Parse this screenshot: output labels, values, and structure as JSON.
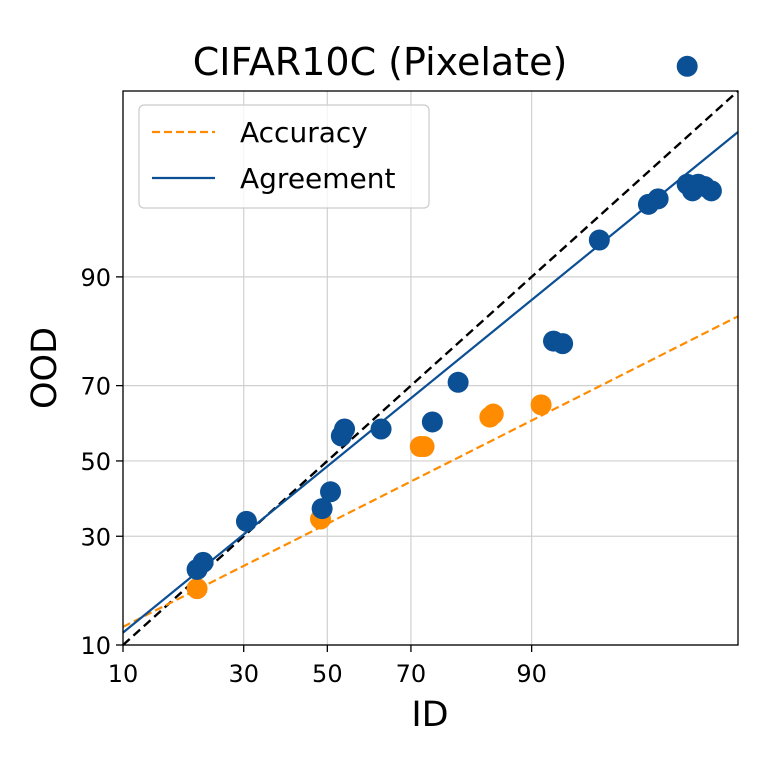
{
  "chart_data": {
    "type": "scatter",
    "title": "CIFAR10C (Pixelate)",
    "xlabel": "ID",
    "ylabel": "OOD",
    "x_ticks": [
      10,
      30,
      50,
      70,
      90
    ],
    "y_ticks": [
      10,
      30,
      50,
      70,
      90
    ],
    "x_tick_labels": [
      "10",
      "30",
      "50",
      "70",
      "90"
    ],
    "y_tick_labels": [
      "10",
      "30",
      "50",
      "70",
      "90"
    ],
    "xlim": [
      10,
      99.5
    ],
    "ylim": [
      10,
      99.5
    ],
    "scale": "probit",
    "grid": true,
    "legend_position": "top-left",
    "legend": [
      {
        "label": "Accuracy",
        "style": "dashed",
        "color": "#ff8c00"
      },
      {
        "label": "Agreement",
        "style": "solid",
        "color": "#0b4f94"
      }
    ],
    "reference_line": {
      "style": "dashed",
      "color": "#000000",
      "from": [
        10,
        10
      ],
      "to": [
        99.5,
        99.5
      ]
    },
    "series": [
      {
        "name": "Accuracy",
        "color": "#ff8c00",
        "points": [
          [
            20.7,
            18.7
          ],
          [
            48.3,
            34.3
          ],
          [
            72.0,
            54.0
          ],
          [
            72.8,
            54.0
          ],
          [
            84.6,
            62.0
          ],
          [
            85.1,
            62.8
          ],
          [
            91.0,
            65.2
          ]
        ],
        "fit": {
          "from": [
            10,
            12.4
          ],
          "to": [
            99.5,
            84.3
          ]
        }
      },
      {
        "name": "Agreement",
        "color": "#0b4f94",
        "points": [
          [
            20.7,
            22.5
          ],
          [
            21.8,
            24.0
          ],
          [
            30.6,
            33.7
          ],
          [
            48.7,
            37.0
          ],
          [
            50.8,
            41.5
          ],
          [
            53.5,
            56.9
          ],
          [
            54.3,
            58.8
          ],
          [
            63.2,
            58.8
          ],
          [
            74.5,
            60.7
          ],
          [
            79.4,
            70.8
          ],
          [
            92.2,
            79.8
          ],
          [
            93.0,
            79.3
          ],
          [
            95.6,
            93.8
          ],
          [
            97.8,
            96.3
          ],
          [
            98.1,
            96.6
          ],
          [
            98.8,
            97.3
          ],
          [
            98.8,
            99.7
          ],
          [
            98.9,
            97.0
          ],
          [
            99.0,
            97.3
          ],
          [
            99.1,
            97.2
          ],
          [
            99.2,
            97.0
          ]
        ],
        "fit": {
          "from": [
            10,
            11.6
          ],
          "to": [
            99.5,
            98.9
          ]
        }
      }
    ]
  }
}
